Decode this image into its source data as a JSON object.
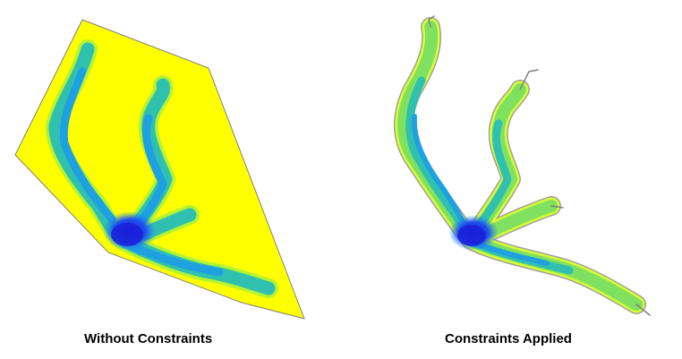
{
  "panels": [
    {
      "caption": "Without Constraints",
      "background_fill": "#ffff00",
      "outline_color": "#808080"
    },
    {
      "caption": "Constraints Applied",
      "background_fill": "#ffffff",
      "outline_color": "#808080"
    }
  ],
  "colors": {
    "deep": "#1f2fe8",
    "mid_deep": "#1f6ff0",
    "mid": "#1fa0e0",
    "shallow": "#30c0b0",
    "very_shallow": "#80e060",
    "edge": "#e0ff30"
  }
}
